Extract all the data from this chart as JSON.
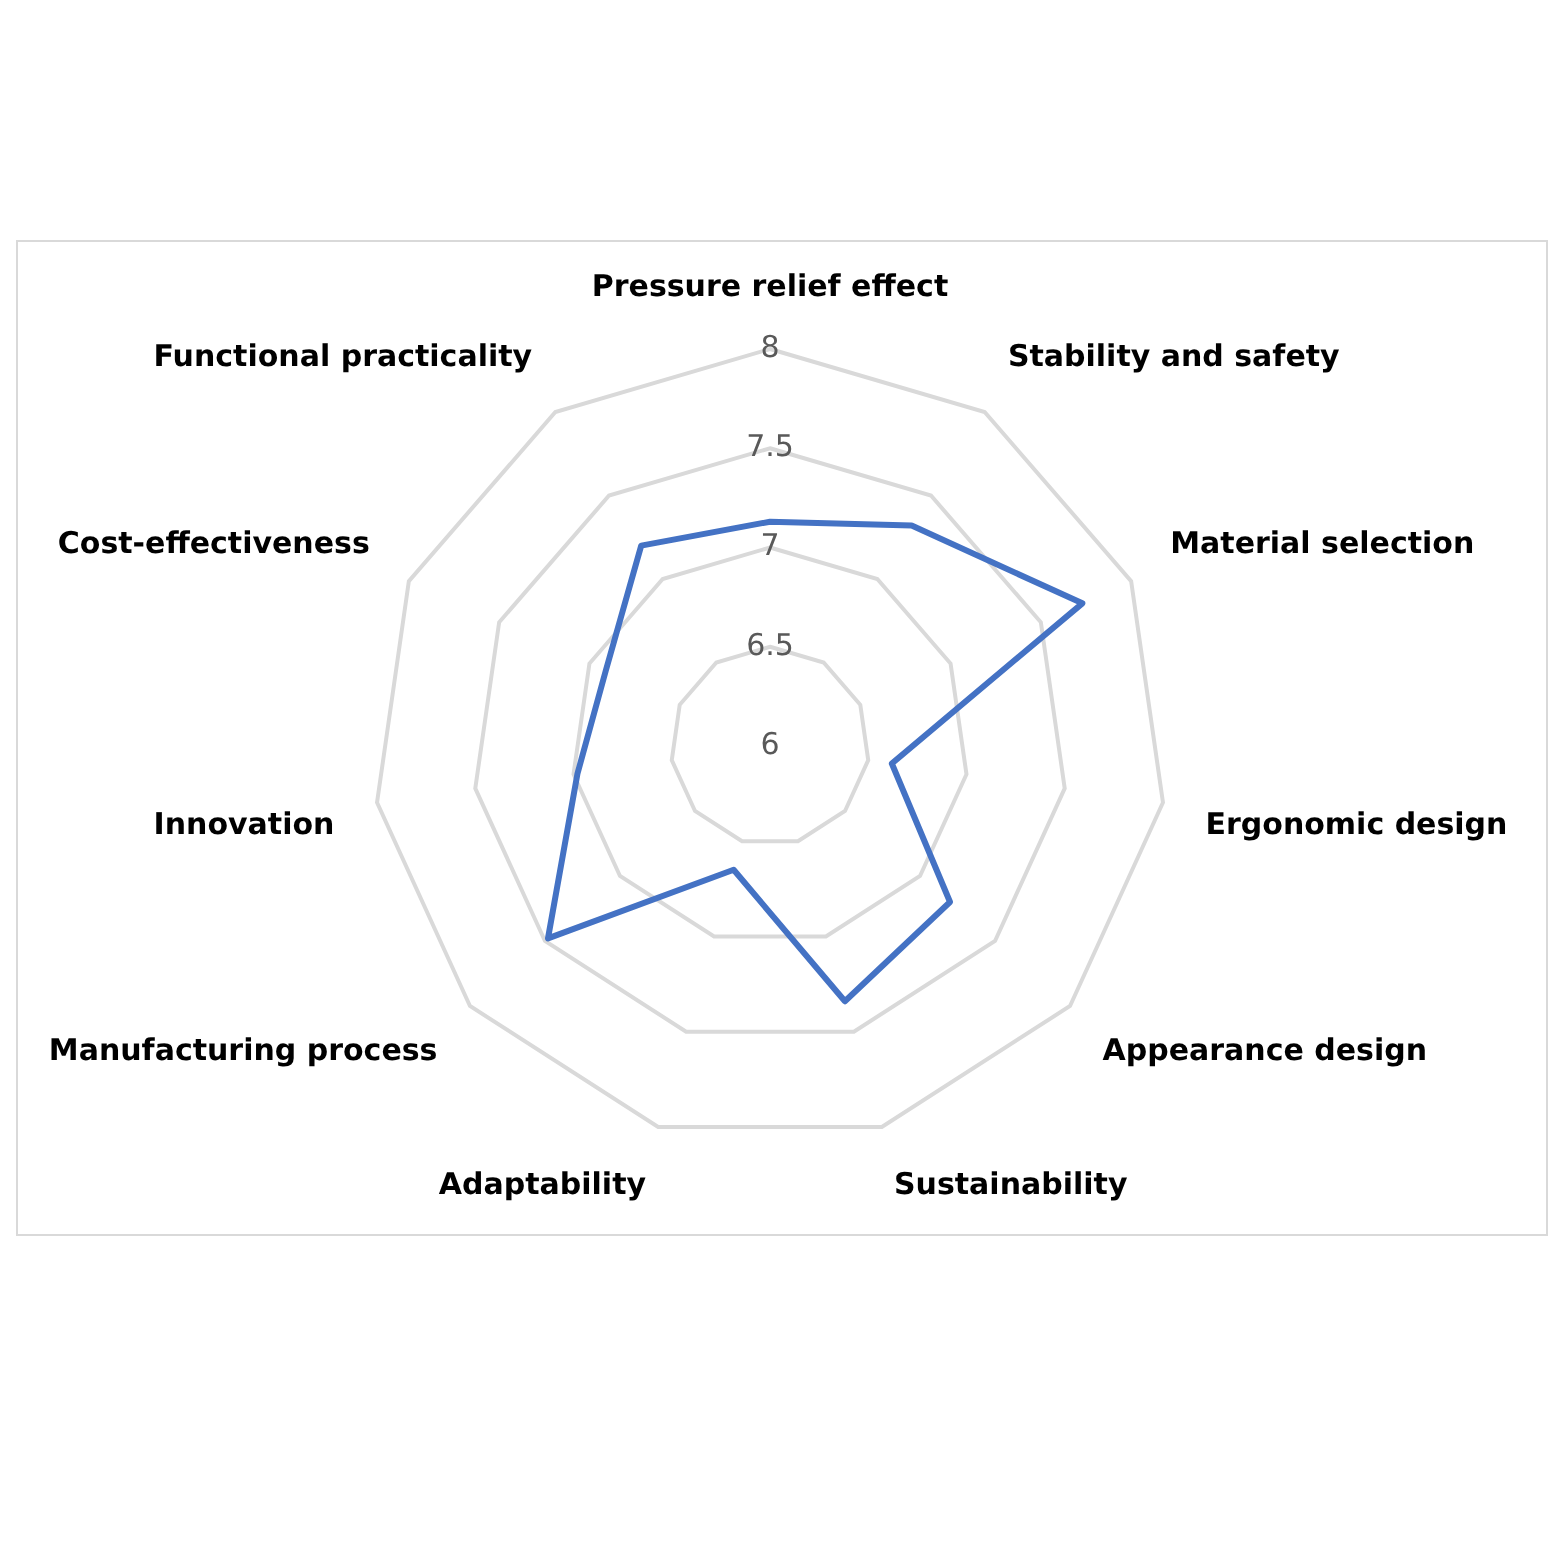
{
  "chart_data": {
    "type": "radar",
    "categories": [
      "Pressure relief effect",
      "Stability and safety",
      "Material selection",
      "Ergonomic design",
      "Appearance design",
      "Sustainability",
      "Adaptability",
      "Manufacturing process",
      "Innovation",
      "Cost-effectiveness",
      "Functional practicality"
    ],
    "series": [
      {
        "color": "#4472c4",
        "values": [
          7.13,
          7.32,
          7.73,
          6.62,
          7.2,
          7.34,
          6.65,
          7.48,
          6.98,
          6.91,
          7.2
        ]
      }
    ],
    "ylim": [
      6,
      8
    ],
    "yticks": [
      6,
      6.5,
      7,
      7.5,
      8
    ],
    "grid": true,
    "legend": false,
    "marker": "none"
  }
}
